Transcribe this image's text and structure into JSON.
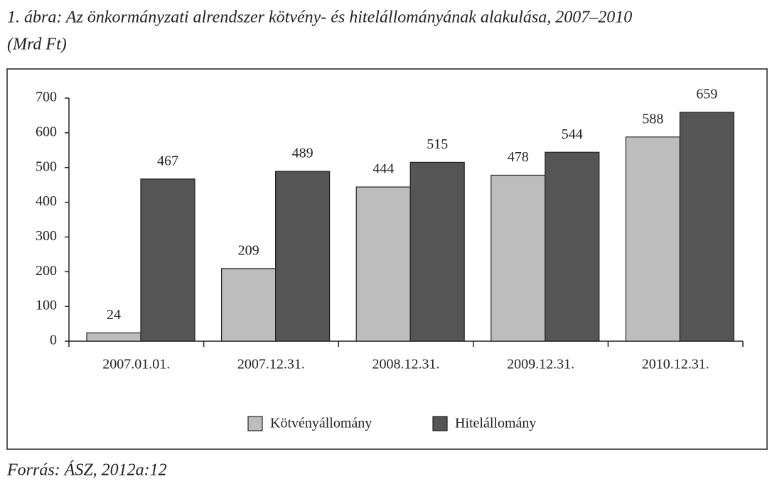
{
  "chart_data": {
    "type": "bar",
    "title": "1. ábra: Az önkormányzati alrendszer kötvény- és hitelállományának alakulása, 2007–2010",
    "subtitle": "(Mrd Ft)",
    "categories": [
      "2007.01.01.",
      "2007.12.31.",
      "2008.12.31.",
      "2009.12.31.",
      "2010.12.31."
    ],
    "series": [
      {
        "name": "Kötvényállomány",
        "color": "#bdbdbd",
        "values": [
          24,
          209,
          444,
          478,
          588
        ]
      },
      {
        "name": "Hitelállomány",
        "color": "#555555",
        "values": [
          467,
          489,
          515,
          544,
          659
        ]
      }
    ],
    "ylim": [
      0,
      700
    ],
    "yticks": [
      0,
      100,
      200,
      300,
      400,
      500,
      600,
      700
    ],
    "legend": "bottom",
    "source": "Forrás: ÁSZ, 2012a:12"
  }
}
